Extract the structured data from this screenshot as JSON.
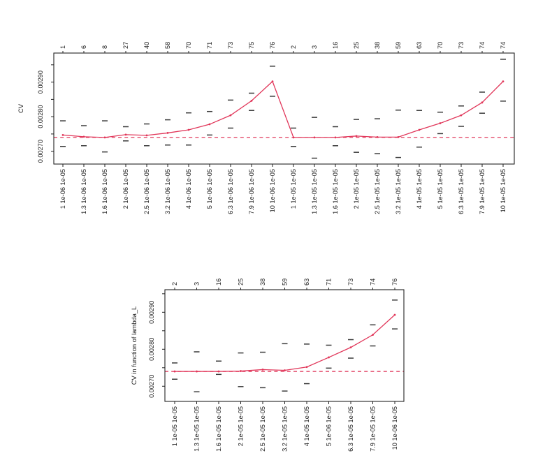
{
  "figure": {
    "background": "#ffffff",
    "description_top_plot": "CV",
    "description_bottom_plot": "CV in function of lambda_L"
  },
  "chart_data": [
    {
      "type": "line",
      "name": "cv-plot-top",
      "ylabel": "CV",
      "xlabel": "",
      "title": "",
      "legend": "none",
      "grid": false,
      "ylim": [
        0.002663,
        0.002984
      ],
      "y_ticks": [
        {
          "v": 0.0027,
          "label": "0.00270"
        },
        {
          "v": 0.00275,
          "label": ""
        },
        {
          "v": 0.0028,
          "label": "0.00280"
        },
        {
          "v": 0.00285,
          "label": ""
        },
        {
          "v": 0.0029,
          "label": "0.00290"
        },
        {
          "v": 0.00295,
          "label": ""
        }
      ],
      "top_labels": [
        "1",
        "6",
        "8",
        "27",
        "40",
        "58",
        "70",
        "71",
        "73",
        "75",
        "76",
        "2",
        "3",
        "16",
        "25",
        "38",
        "59",
        "63",
        "70",
        "73",
        "74",
        "74"
      ],
      "x_labels": [
        "1 1e-06 1e-05",
        "1.3 1e-06 1e-05",
        "1.6 1e-06 1e-05",
        "2 1e-06 1e-05",
        "2.5 1e-06 1e-05",
        "3.2 1e-06 1e-05",
        "4 1e-06 1e-05",
        "5 1e-06 1e-05",
        "6.3 1e-06 1e-05",
        "7.9 1e-06 1e-05",
        "10 1e-06 1e-05",
        "1 1e-05 1e-05",
        "1.3 1e-05 1e-05",
        "1.6 1e-05 1e-05",
        "2 1e-05 1e-05",
        "2.5 1e-05 1e-05",
        "3.2 1e-05 1e-05",
        "4 1e-05 1e-05",
        "5 1e-05 1e-05",
        "6.3 1e-05 1e-05",
        "7.9 1e-05 1e-05",
        "10 1e-05 1e-05"
      ],
      "values": [
        0.002747,
        0.002742,
        0.00274,
        0.002748,
        0.002746,
        0.002753,
        0.002762,
        0.002778,
        0.002804,
        0.002846,
        0.002902,
        0.00274,
        0.00274,
        0.00274,
        0.002744,
        0.002741,
        0.002741,
        0.002762,
        0.002781,
        0.002804,
        0.002841,
        0.002902
      ],
      "upper": [
        0.002788,
        0.002774,
        0.002788,
        0.002771,
        0.002779,
        0.002791,
        0.002811,
        0.002815,
        0.002848,
        0.002868,
        0.002946,
        0.002767,
        0.002798,
        0.002771,
        0.002792,
        0.002794,
        0.002819,
        0.002818,
        0.002813,
        0.002831,
        0.002871,
        0.002966
      ],
      "lower": [
        0.002714,
        0.002716,
        0.002698,
        0.00273,
        0.002716,
        0.002718,
        0.002718,
        0.002747,
        0.002767,
        0.002818,
        0.002859,
        0.002714,
        0.00268,
        0.002716,
        0.002697,
        0.002693,
        0.002682,
        0.002712,
        0.002751,
        0.002772,
        0.00281,
        0.002845
      ],
      "min_line": 0.00274,
      "min_line_style": "dashed",
      "line_color": "#e1375a",
      "errorbar_color": "#3a3a3a",
      "axis_color": "#222222"
    },
    {
      "type": "line",
      "name": "cv-plot-bottom",
      "ylabel": "CV in function of lambda_L",
      "xlabel": "",
      "title": "",
      "legend": "none",
      "grid": false,
      "ylim": [
        0.002659,
        0.002961
      ],
      "y_ticks": [
        {
          "v": 0.0027,
          "label": "0.00270"
        },
        {
          "v": 0.00275,
          "label": ""
        },
        {
          "v": 0.0028,
          "label": "0.00280"
        },
        {
          "v": 0.00285,
          "label": ""
        },
        {
          "v": 0.0029,
          "label": "0.00290"
        },
        {
          "v": 0.00295,
          "label": ""
        }
      ],
      "top_labels": [
        "2",
        "3",
        "16",
        "25",
        "38",
        "59",
        "63",
        "71",
        "73",
        "74",
        "76"
      ],
      "x_labels": [
        "1 1e-05 1e-05",
        "1.3 1e-05 1e-05",
        "1.6 1e-05 1e-05",
        "2 1e-05 1e-05",
        "2.5 1e-05 1e-05",
        "3.2 1e-05 1e-05",
        "4 1e-05 1e-05",
        "5 1e-06 1e-05",
        "6.3 1e-05 1e-05",
        "7.9 1e-05 1e-05",
        "10 1e-06 1e-05"
      ],
      "values": [
        0.00274,
        0.00274,
        0.00274,
        0.002741,
        0.002745,
        0.002743,
        0.002752,
        0.002778,
        0.002805,
        0.002839,
        0.002893
      ],
      "upper": [
        0.002763,
        0.002793,
        0.002768,
        0.00279,
        0.002792,
        0.002815,
        0.002814,
        0.002811,
        0.002826,
        0.002866,
        0.002933
      ],
      "lower": [
        0.002719,
        0.002685,
        0.002732,
        0.002699,
        0.002696,
        0.002687,
        0.002707,
        0.002749,
        0.002776,
        0.002809,
        0.002855
      ],
      "min_line": 0.00274,
      "min_line_style": "dashed",
      "line_color": "#e1375a",
      "errorbar_color": "#3a3a3a",
      "axis_color": "#222222"
    }
  ]
}
